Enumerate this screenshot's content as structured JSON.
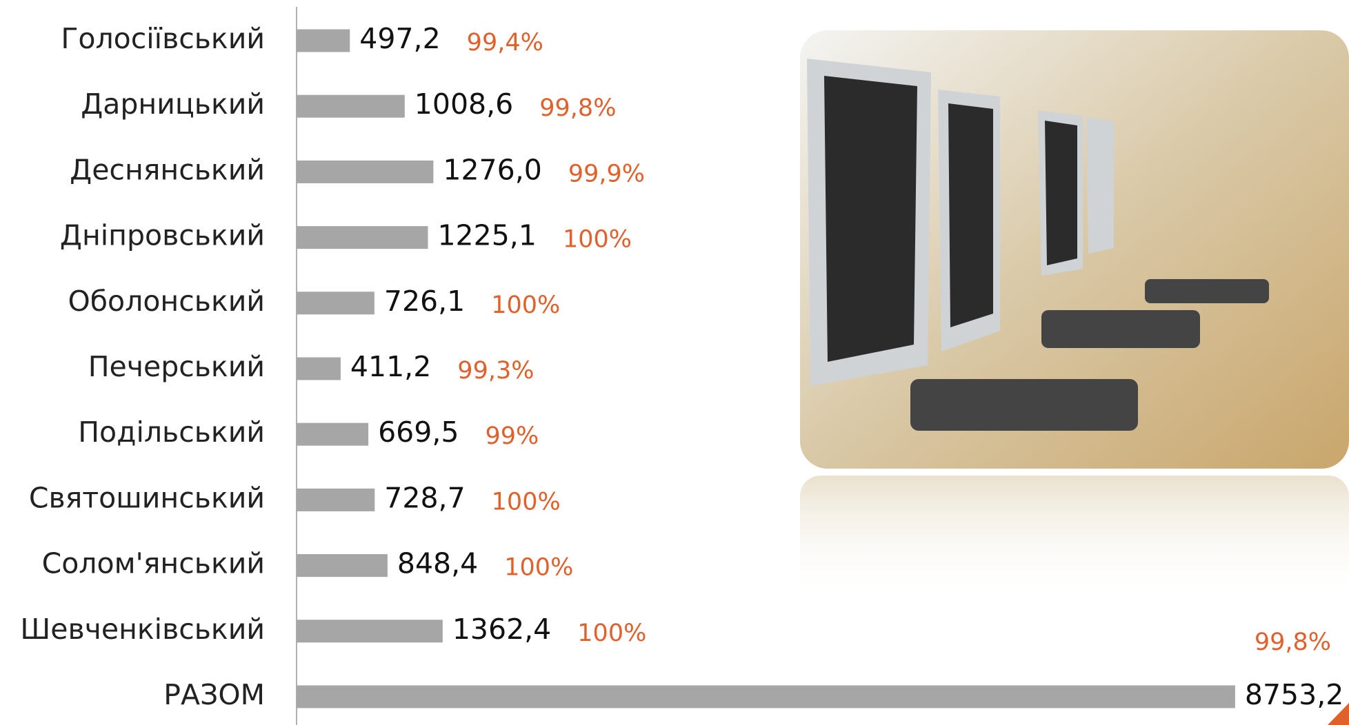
{
  "chart_data": {
    "type": "bar",
    "orientation": "horizontal",
    "categories": [
      "Голосіївський",
      "Дарницький",
      "Деснянський",
      "Дніпровський",
      "Оболонський",
      "Печерський",
      "Подільський",
      "Святошинський",
      "Солом'янський",
      "Шевченківський",
      "РАЗОМ"
    ],
    "values": [
      497.2,
      1008.6,
      1276.0,
      1225.1,
      726.1,
      411.2,
      669.5,
      728.7,
      848.4,
      1362.4,
      8753.2
    ],
    "value_labels": [
      "497,2",
      "1008,6",
      "1276,0",
      "1225,1",
      "726,1",
      "411,2",
      "669,5",
      "728,7",
      "848,4",
      "1362,4",
      "8753,2"
    ],
    "percent_labels": [
      "99,4%",
      "99,8%",
      "99,9%",
      "100%",
      "100%",
      "99,3%",
      "99%",
      "100%",
      "100%",
      "100%",
      "99,8%"
    ],
    "color": "#a6a6a6",
    "percent_color": "#e0612b",
    "xlim": [
      0,
      9500
    ]
  }
}
